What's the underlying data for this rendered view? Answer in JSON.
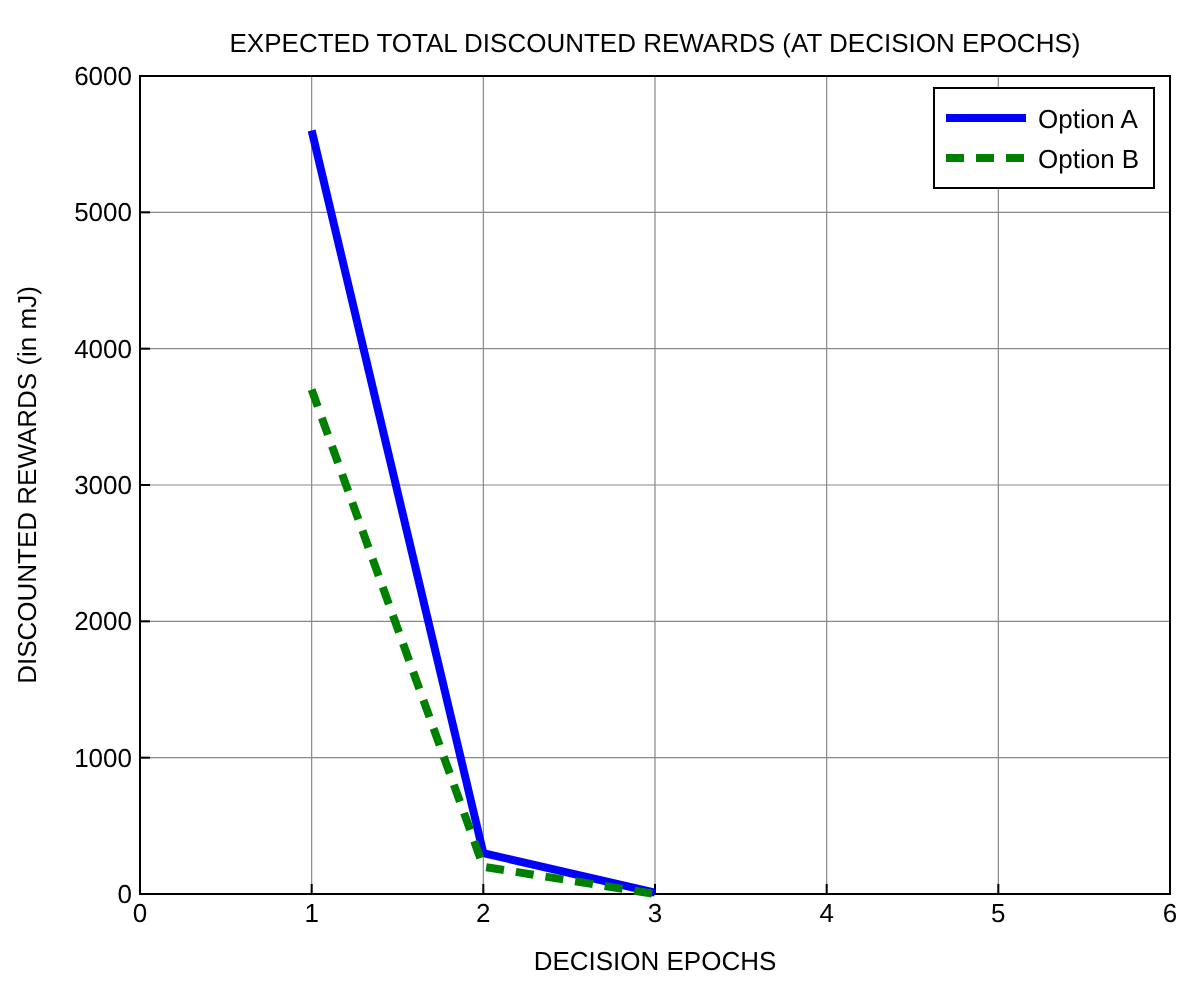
{
  "chart_data": {
    "type": "line",
    "title": "EXPECTED TOTAL DISCOUNTED REWARDS (AT DECISION EPOCHS)",
    "xlabel": "DECISION EPOCHS",
    "ylabel": "DISCOUNTED REWARDS (in mJ)",
    "x": [
      1,
      2,
      3
    ],
    "series": [
      {
        "name": "Option A",
        "color": "#0000ff",
        "values": [
          5600,
          300,
          10
        ],
        "line_style": "solid"
      },
      {
        "name": "Option B",
        "color": "#008000",
        "values": [
          3700,
          200,
          0
        ],
        "line_style": "dashed"
      }
    ],
    "xlim": [
      0,
      6
    ],
    "xticks": [
      0,
      1,
      2,
      3,
      4,
      5,
      6
    ],
    "ylim": [
      0,
      6000
    ],
    "yticks": [
      0,
      1000,
      2000,
      3000,
      4000,
      5000,
      6000
    ],
    "grid": true,
    "legend": "top right",
    "marker": "none"
  }
}
